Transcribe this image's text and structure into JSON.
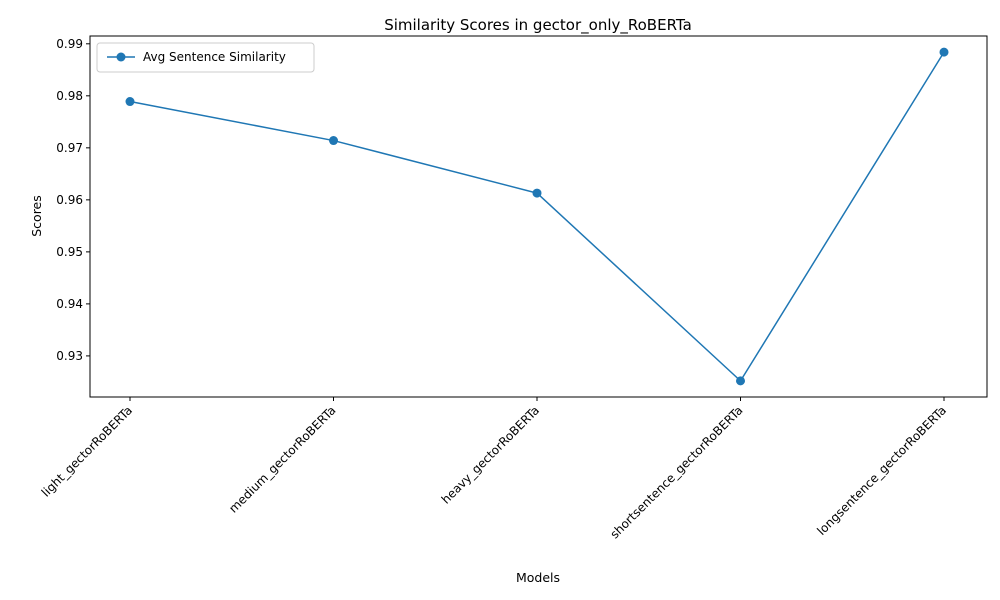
{
  "chart_data": {
    "type": "line",
    "title": "Similarity Scores in gector_only_RoBERTa",
    "xlabel": "Models",
    "ylabel": "Scores",
    "categories": [
      "light_gectorRoBERTa",
      "medium_gectorRoBERTa",
      "heavy_gectorRoBERTa",
      "shortsentence_gectorRoBERTa",
      "longsentence_gectorRoBERTa"
    ],
    "series": [
      {
        "name": "Avg Sentence Similarity",
        "values": [
          0.9789,
          0.9714,
          0.9613,
          0.9252,
          0.9884
        ],
        "color": "#1f77b4",
        "marker": "circle"
      }
    ],
    "ylim": [
      0.9221,
      0.9915
    ],
    "yticks": [
      "0.93",
      "0.94",
      "0.95",
      "0.96",
      "0.97",
      "0.98",
      "0.99"
    ],
    "ytick_values": [
      0.93,
      0.94,
      0.95,
      0.96,
      0.97,
      0.98,
      0.99
    ],
    "grid": false,
    "legend_position": "top-left"
  }
}
